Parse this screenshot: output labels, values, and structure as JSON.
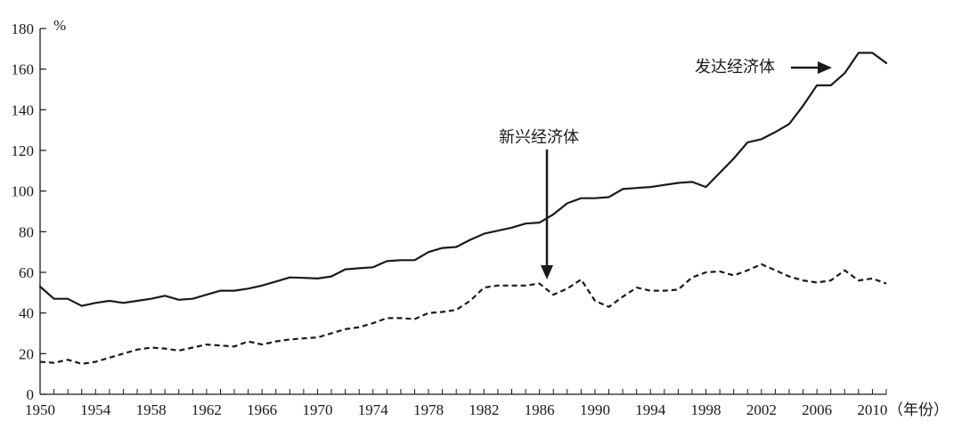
{
  "chart_data": {
    "type": "line",
    "ylabel": "%",
    "xlabel": "（年份）",
    "xlim": [
      1950,
      2011
    ],
    "ylim": [
      0,
      180
    ],
    "x_ticks": [
      "1950",
      "1954",
      "1958",
      "1962",
      "1966",
      "1970",
      "1974",
      "1978",
      "1982",
      "1986",
      "1990",
      "1994",
      "1998",
      "2002",
      "2006",
      "2010"
    ],
    "y_ticks": [
      "0",
      "20",
      "40",
      "60",
      "80",
      "100",
      "120",
      "140",
      "160",
      "180"
    ],
    "grid": false,
    "x": [
      1950,
      1951,
      1952,
      1953,
      1954,
      1955,
      1956,
      1957,
      1958,
      1959,
      1960,
      1961,
      1962,
      1963,
      1964,
      1965,
      1966,
      1967,
      1968,
      1969,
      1970,
      1971,
      1972,
      1973,
      1974,
      1975,
      1976,
      1977,
      1978,
      1979,
      1980,
      1981,
      1982,
      1983,
      1984,
      1985,
      1986,
      1987,
      1988,
      1989,
      1990,
      1991,
      1992,
      1993,
      1994,
      1995,
      1996,
      1997,
      1998,
      1999,
      2000,
      2001,
      2002,
      2003,
      2004,
      2005,
      2006,
      2007,
      2008,
      2009,
      2010,
      2011
    ],
    "series": [
      {
        "name": "发达经济体",
        "style": "solid",
        "values": [
          53,
          47,
          47,
          43.5,
          45,
          46,
          45,
          46,
          47,
          48.5,
          46.5,
          47,
          49,
          51,
          51,
          52,
          53.5,
          55.5,
          57.5,
          57.3,
          57,
          58,
          61.5,
          62,
          62.5,
          65.5,
          66,
          66,
          70,
          72,
          72.5,
          76,
          79,
          80.5,
          82,
          84,
          84.5,
          88.5,
          94,
          96.5,
          96.5,
          97,
          101,
          101.5,
          102,
          103,
          104,
          104.5,
          102,
          109,
          116,
          124,
          125.5,
          129,
          133,
          142,
          152,
          152,
          158,
          168,
          168,
          163
        ]
      },
      {
        "name": "新兴经济体",
        "style": "dashed",
        "values": [
          16,
          15.5,
          17,
          15,
          16,
          18,
          20,
          22,
          23,
          22.5,
          21.5,
          23,
          24.5,
          24,
          23.5,
          26,
          24.5,
          26,
          27,
          27.5,
          28,
          30,
          32,
          33,
          35,
          37.5,
          37.5,
          37,
          40,
          40.5,
          41.5,
          46,
          52.5,
          53.5,
          53.5,
          53.5,
          54.5,
          49,
          52,
          56.5,
          46,
          43,
          48,
          52.5,
          51,
          51,
          51.5,
          57.5,
          60,
          60.5,
          58.5,
          61,
          64,
          61,
          58,
          56,
          55,
          56,
          61,
          56,
          57,
          54.5
        ]
      }
    ],
    "annotations": [
      {
        "text": "发达经济体",
        "arrow": "right"
      },
      {
        "text": "新兴经济体",
        "arrow": "down"
      }
    ]
  },
  "colors": {
    "line": "#1a1a1a",
    "background": "#ffffff"
  }
}
